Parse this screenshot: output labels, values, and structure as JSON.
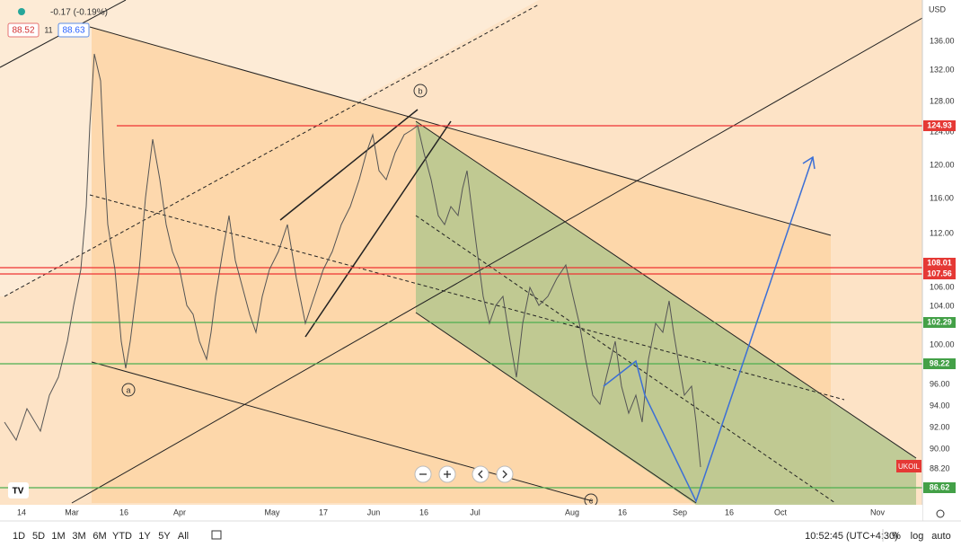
{
  "header": {
    "change": "-0.17 (-0.19%)",
    "bid": "88.52",
    "spread": "11",
    "ask": "88.63"
  },
  "price_axis": {
    "currency": "USD",
    "ticks": [
      "136.00",
      "132.00",
      "128.00",
      "124.00",
      "120.00",
      "116.00",
      "112.00",
      "106.00",
      "104.00",
      "100.00",
      "96.00",
      "94.00",
      "92.00",
      "90.00",
      "88.20"
    ]
  },
  "levels": [
    "124.93",
    "108.01",
    "107.56",
    "102.29",
    "98.22",
    "86.62"
  ],
  "symbol": "UKOIL",
  "annotations": [
    "a",
    "b",
    "c"
  ],
  "time_axis": [
    "14",
    "Mar",
    "16",
    "Apr",
    "May",
    "17",
    "Jun",
    "16",
    "Jul",
    "Aug",
    "16",
    "Sep",
    "16",
    "Oct",
    "Nov"
  ],
  "toolbar": {
    "ranges": [
      "1D",
      "5D",
      "1M",
      "3M",
      "6M",
      "YTD",
      "1Y",
      "5Y",
      "All"
    ],
    "clock": "10:52:45 (UTC+4:30)",
    "percent": "%",
    "log": "log",
    "auto": "auto"
  }
}
